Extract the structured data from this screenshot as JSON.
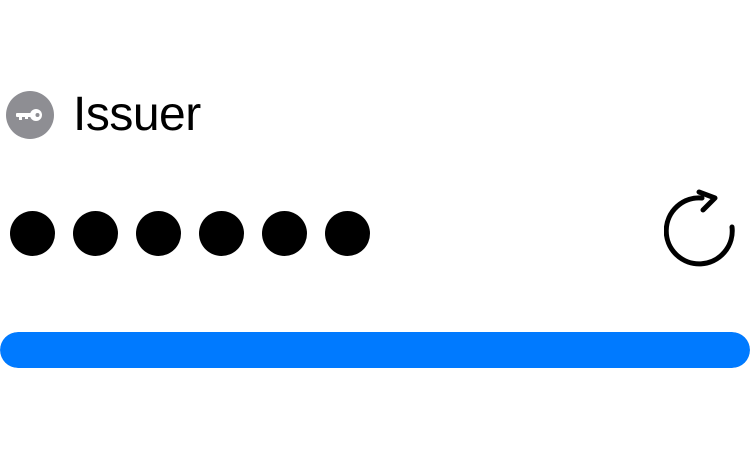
{
  "account": {
    "issuer": "Issuer",
    "issuer_icon": "key-icon",
    "icon_color": "#8e8e93"
  },
  "code": {
    "masked": true,
    "digit_count": 6,
    "dot_color": "#000000"
  },
  "refresh": {
    "icon": "refresh-icon"
  },
  "timer": {
    "progress": 1.0,
    "color": "#007aff"
  }
}
